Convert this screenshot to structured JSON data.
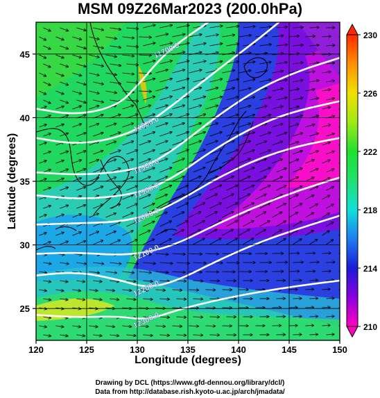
{
  "title": "MSM 09Z26Mar2023 (200.0hPa)",
  "x_axis": {
    "label": "Longitude (degrees)",
    "range": [
      120,
      150
    ],
    "ticks": [
      {
        "value": 120,
        "label": "120"
      },
      {
        "value": 125,
        "label": "125"
      },
      {
        "value": 130,
        "label": "130"
      },
      {
        "value": 135,
        "label": "135"
      },
      {
        "value": 140,
        "label": "140"
      },
      {
        "value": 145,
        "label": "145"
      },
      {
        "value": 150,
        "label": "150"
      }
    ]
  },
  "y_axis": {
    "label": "Latitude  (degrees)",
    "range": [
      22.5,
      47.5
    ],
    "ticks": [
      {
        "value": 25,
        "label": "25"
      },
      {
        "value": 30,
        "label": "30"
      },
      {
        "value": 35,
        "label": "35"
      },
      {
        "value": 40,
        "label": "40"
      },
      {
        "value": 45,
        "label": "45"
      }
    ]
  },
  "colorbar": {
    "range": [
      210,
      230
    ],
    "ticks": [
      {
        "value": 210,
        "label": "210"
      },
      {
        "value": 214,
        "label": "214"
      },
      {
        "value": 218,
        "label": "218"
      },
      {
        "value": 222,
        "label": "222"
      },
      {
        "value": 226,
        "label": "226"
      },
      {
        "value": 230,
        "label": "230"
      }
    ],
    "stops": [
      {
        "value": 210,
        "color": "#ff00c0"
      },
      {
        "value": 212,
        "color": "#8a00e0"
      },
      {
        "value": 214,
        "color": "#1a1ad8"
      },
      {
        "value": 216,
        "color": "#1f7cf0"
      },
      {
        "value": 218,
        "color": "#10e0d8"
      },
      {
        "value": 220,
        "color": "#20e070"
      },
      {
        "value": 222,
        "color": "#20e030"
      },
      {
        "value": 224,
        "color": "#a0e818"
      },
      {
        "value": 226,
        "color": "#f0e000"
      },
      {
        "value": 228,
        "color": "#ff9000"
      },
      {
        "value": 230,
        "color": "#ff2a00"
      }
    ]
  },
  "height_contours": [
    {
      "label": "11700.0",
      "points": [
        [
          120,
          40.7
        ],
        [
          124,
          40.2
        ],
        [
          128,
          40.9
        ],
        [
          130,
          42.5
        ],
        [
          133,
          45.3
        ],
        [
          137,
          47.5
        ]
      ]
    },
    {
      "label": "11800.0",
      "points": [
        [
          120,
          38.4
        ],
        [
          124,
          37.9
        ],
        [
          128,
          38.4
        ],
        [
          131,
          39.5
        ],
        [
          134,
          41.3
        ],
        [
          138,
          43.8
        ],
        [
          142,
          46.2
        ],
        [
          144,
          47.5
        ]
      ]
    },
    {
      "label": "11900.0",
      "points": [
        [
          120,
          35.7
        ],
        [
          124,
          35.5
        ],
        [
          128,
          35.7
        ],
        [
          131,
          36.2
        ],
        [
          134,
          37.7
        ],
        [
          138,
          40.2
        ],
        [
          142,
          42.3
        ],
        [
          146,
          43.7
        ],
        [
          150,
          44.7
        ]
      ]
    },
    {
      "label": "11960.0",
      "points": [
        [
          120,
          33.9
        ],
        [
          124,
          33.6
        ],
        [
          128,
          33.8
        ],
        [
          131,
          34.3
        ],
        [
          134,
          35.5
        ],
        [
          137,
          37.2
        ],
        [
          141,
          39.1
        ],
        [
          145,
          40.4
        ],
        [
          150,
          41.3
        ]
      ]
    },
    {
      "label": "12000.0",
      "points": [
        [
          120,
          31.6
        ],
        [
          124,
          31.7
        ],
        [
          128,
          31.8
        ],
        [
          131,
          32.3
        ],
        [
          134,
          33.4
        ],
        [
          138,
          35.3
        ],
        [
          142,
          36.8
        ],
        [
          146,
          37.8
        ],
        [
          150,
          38.4
        ]
      ]
    },
    {
      "label": "12100.0",
      "points": [
        [
          120,
          29.3
        ],
        [
          124,
          29.4
        ],
        [
          128,
          29.2
        ],
        [
          131,
          29.4
        ],
        [
          134,
          30.1
        ],
        [
          138,
          31.7
        ],
        [
          142,
          33.1
        ],
        [
          146,
          34.3
        ],
        [
          150,
          35.3
        ]
      ]
    },
    {
      "label": "12200.0",
      "points": [
        [
          120,
          27.6
        ],
        [
          124,
          27.9
        ],
        [
          128,
          27.3
        ],
        [
          131,
          26.6
        ],
        [
          134,
          27.2
        ],
        [
          138,
          28.8
        ],
        [
          142,
          30.2
        ],
        [
          146,
          31.3
        ],
        [
          150,
          32.3
        ]
      ]
    },
    {
      "label": "12300.0",
      "points": [
        [
          120,
          24.5
        ],
        [
          124,
          24.3
        ],
        [
          128,
          24.4
        ],
        [
          131,
          24.1
        ],
        [
          134,
          24.9
        ],
        [
          138,
          25.7
        ],
        [
          142,
          26.3
        ],
        [
          146,
          26.8
        ],
        [
          150,
          27.2
        ]
      ]
    }
  ],
  "credits": {
    "line1": "Drawing by DCL (https://www.gfd-dennou.org/library/dcl/)",
    "line2": "Data from http://database.rish.kyoto-u.ac.jp/arch/jmadata/"
  }
}
